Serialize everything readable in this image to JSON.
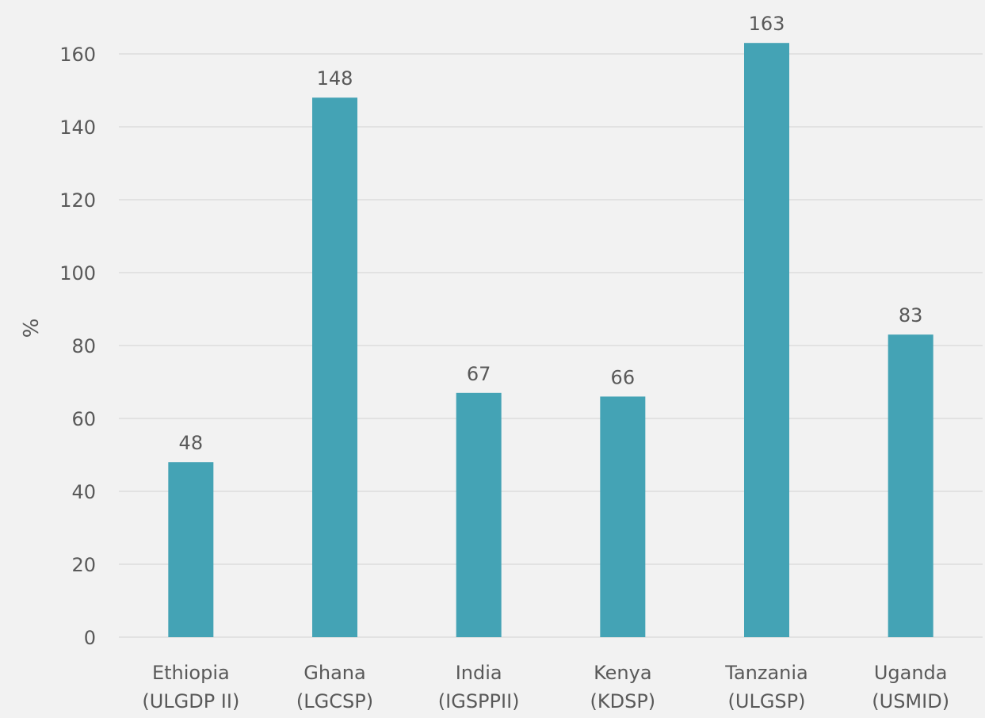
{
  "chart_data": {
    "type": "bar",
    "title": "",
    "xlabel": "",
    "ylabel": "%",
    "ylim": [
      0,
      170
    ],
    "yticks": [
      0,
      20,
      40,
      60,
      80,
      100,
      120,
      140,
      160
    ],
    "grid": true,
    "legend": "none",
    "categories": [
      [
        "Ethiopia",
        "(ULGDP II)"
      ],
      [
        "Ghana",
        "(LGCSP)"
      ],
      [
        "India",
        "(IGSPPII)"
      ],
      [
        "Kenya",
        "(KDSP)"
      ],
      [
        "Tanzania",
        "(ULGSP)"
      ],
      [
        "Uganda",
        "(USMID)"
      ]
    ],
    "values": [
      48,
      148,
      67,
      66,
      163,
      83
    ],
    "data_labels": [
      "48",
      "148",
      "67",
      "66",
      "163",
      "83"
    ],
    "colors": {
      "bar": "#44a3b5",
      "grid": "#d9d9d9",
      "text": "#595959",
      "background": "#f2f2f2"
    }
  }
}
